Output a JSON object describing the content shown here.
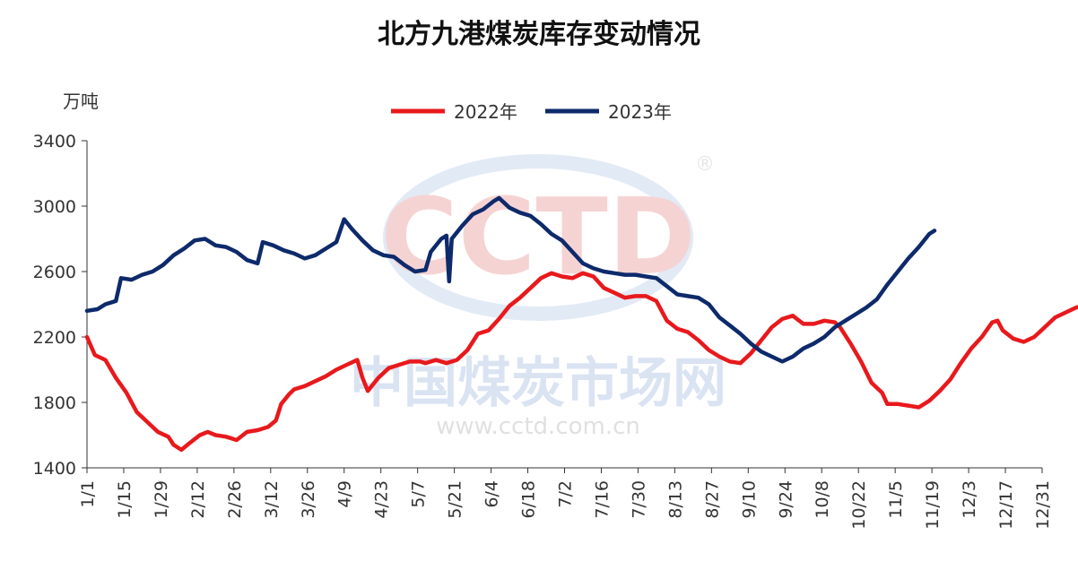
{
  "chart_data": {
    "type": "line",
    "title": "北方九港煤炭库存变动情况",
    "ylabel": "万吨",
    "ylim": [
      1400,
      3400
    ],
    "yticks": [
      1400,
      1800,
      2200,
      2600,
      3000,
      3400
    ],
    "x_tick_labels": [
      "1/1",
      "1/15",
      "1/29",
      "2/12",
      "2/26",
      "3/12",
      "3/26",
      "4/9",
      "4/23",
      "5/7",
      "5/21",
      "6/4",
      "6/18",
      "7/2",
      "7/16",
      "7/30",
      "8/13",
      "8/27",
      "9/10",
      "9/24",
      "10/8",
      "10/22",
      "11/5",
      "11/19",
      "12/3",
      "12/17",
      "12/31"
    ],
    "x_unit": "day of year",
    "grid": false,
    "legend_position": "top-center",
    "watermark": {
      "logo": "CCTD",
      "name": "中国煤炭市场网",
      "url": "www.cctd.com.cn",
      "registered": "®"
    },
    "series": [
      {
        "name": "2022年",
        "color": "#e8191c",
        "points": [
          [
            1,
            2200
          ],
          [
            4,
            2090
          ],
          [
            8,
            2060
          ],
          [
            12,
            1950
          ],
          [
            16,
            1860
          ],
          [
            20,
            1740
          ],
          [
            24,
            1680
          ],
          [
            28,
            1620
          ],
          [
            32,
            1590
          ],
          [
            34,
            1540
          ],
          [
            37,
            1510
          ],
          [
            40,
            1550
          ],
          [
            44,
            1600
          ],
          [
            47,
            1620
          ],
          [
            50,
            1600
          ],
          [
            54,
            1590
          ],
          [
            58,
            1570
          ],
          [
            62,
            1620
          ],
          [
            66,
            1630
          ],
          [
            70,
            1650
          ],
          [
            73,
            1690
          ],
          [
            75,
            1790
          ],
          [
            78,
            1850
          ],
          [
            80,
            1880
          ],
          [
            84,
            1900
          ],
          [
            88,
            1930
          ],
          [
            92,
            1960
          ],
          [
            96,
            2000
          ],
          [
            100,
            2030
          ],
          [
            104,
            2060
          ],
          [
            106,
            1950
          ],
          [
            108,
            1870
          ],
          [
            112,
            1950
          ],
          [
            116,
            2010
          ],
          [
            120,
            2030
          ],
          [
            124,
            2050
          ],
          [
            128,
            2050
          ],
          [
            130,
            2040
          ],
          [
            134,
            2060
          ],
          [
            138,
            2040
          ],
          [
            142,
            2060
          ],
          [
            146,
            2120
          ],
          [
            150,
            2220
          ],
          [
            154,
            2240
          ],
          [
            158,
            2310
          ],
          [
            162,
            2390
          ],
          [
            166,
            2440
          ],
          [
            170,
            2500
          ],
          [
            174,
            2560
          ],
          [
            178,
            2590
          ],
          [
            182,
            2570
          ],
          [
            186,
            2560
          ],
          [
            190,
            2590
          ],
          [
            194,
            2570
          ],
          [
            198,
            2500
          ],
          [
            202,
            2470
          ],
          [
            206,
            2440
          ],
          [
            210,
            2450
          ],
          [
            214,
            2450
          ],
          [
            218,
            2420
          ],
          [
            222,
            2300
          ],
          [
            226,
            2250
          ],
          [
            230,
            2230
          ],
          [
            234,
            2180
          ],
          [
            238,
            2120
          ],
          [
            242,
            2080
          ],
          [
            246,
            2050
          ],
          [
            250,
            2040
          ],
          [
            254,
            2100
          ],
          [
            258,
            2180
          ],
          [
            262,
            2260
          ],
          [
            266,
            2310
          ],
          [
            270,
            2330
          ],
          [
            274,
            2280
          ],
          [
            278,
            2280
          ],
          [
            282,
            2300
          ],
          [
            286,
            2290
          ],
          [
            288,
            2260
          ],
          [
            292,
            2160
          ],
          [
            296,
            2050
          ],
          [
            300,
            1920
          ],
          [
            304,
            1860
          ],
          [
            306,
            1790
          ],
          [
            310,
            1790
          ],
          [
            314,
            1780
          ],
          [
            318,
            1770
          ],
          [
            322,
            1810
          ],
          [
            326,
            1870
          ],
          [
            330,
            1940
          ],
          [
            334,
            2040
          ],
          [
            338,
            2130
          ],
          [
            342,
            2200
          ],
          [
            346,
            2290
          ],
          [
            348,
            2300
          ],
          [
            350,
            2240
          ],
          [
            354,
            2190
          ],
          [
            358,
            2170
          ],
          [
            362,
            2200
          ],
          [
            366,
            2260
          ],
          [
            370,
            2320
          ],
          [
            374,
            2350
          ],
          [
            378,
            2380
          ],
          [
            381,
            2390
          ]
        ]
      },
      {
        "name": "2023年",
        "color": "#0d2a6b",
        "points": [
          [
            1,
            2360
          ],
          [
            5,
            2370
          ],
          [
            8,
            2400
          ],
          [
            12,
            2420
          ],
          [
            14,
            2560
          ],
          [
            18,
            2550
          ],
          [
            22,
            2580
          ],
          [
            26,
            2600
          ],
          [
            30,
            2640
          ],
          [
            34,
            2700
          ],
          [
            38,
            2740
          ],
          [
            42,
            2790
          ],
          [
            46,
            2800
          ],
          [
            50,
            2760
          ],
          [
            54,
            2750
          ],
          [
            58,
            2720
          ],
          [
            62,
            2670
          ],
          [
            66,
            2650
          ],
          [
            68,
            2780
          ],
          [
            72,
            2760
          ],
          [
            76,
            2730
          ],
          [
            80,
            2710
          ],
          [
            84,
            2680
          ],
          [
            88,
            2700
          ],
          [
            92,
            2740
          ],
          [
            96,
            2780
          ],
          [
            99,
            2920
          ],
          [
            102,
            2860
          ],
          [
            106,
            2790
          ],
          [
            110,
            2730
          ],
          [
            114,
            2700
          ],
          [
            118,
            2690
          ],
          [
            122,
            2640
          ],
          [
            126,
            2600
          ],
          [
            130,
            2610
          ],
          [
            132,
            2720
          ],
          [
            136,
            2800
          ],
          [
            138,
            2820
          ],
          [
            139,
            2540
          ],
          [
            140,
            2800
          ],
          [
            144,
            2880
          ],
          [
            148,
            2950
          ],
          [
            152,
            2980
          ],
          [
            156,
            3030
          ],
          [
            158,
            3050
          ],
          [
            162,
            2990
          ],
          [
            166,
            2960
          ],
          [
            170,
            2940
          ],
          [
            174,
            2890
          ],
          [
            178,
            2830
          ],
          [
            182,
            2790
          ],
          [
            186,
            2720
          ],
          [
            190,
            2650
          ],
          [
            194,
            2620
          ],
          [
            198,
            2600
          ],
          [
            202,
            2590
          ],
          [
            206,
            2580
          ],
          [
            210,
            2580
          ],
          [
            214,
            2570
          ],
          [
            218,
            2560
          ],
          [
            222,
            2510
          ],
          [
            226,
            2460
          ],
          [
            230,
            2450
          ],
          [
            234,
            2440
          ],
          [
            238,
            2400
          ],
          [
            242,
            2320
          ],
          [
            246,
            2270
          ],
          [
            250,
            2220
          ],
          [
            254,
            2160
          ],
          [
            258,
            2110
          ],
          [
            262,
            2080
          ],
          [
            266,
            2050
          ],
          [
            270,
            2080
          ],
          [
            274,
            2130
          ],
          [
            278,
            2160
          ],
          [
            282,
            2200
          ],
          [
            286,
            2260
          ],
          [
            290,
            2300
          ],
          [
            294,
            2340
          ],
          [
            298,
            2380
          ],
          [
            302,
            2430
          ],
          [
            306,
            2520
          ],
          [
            310,
            2600
          ],
          [
            314,
            2680
          ],
          [
            318,
            2750
          ],
          [
            322,
            2830
          ],
          [
            324,
            2850
          ]
        ]
      }
    ]
  }
}
